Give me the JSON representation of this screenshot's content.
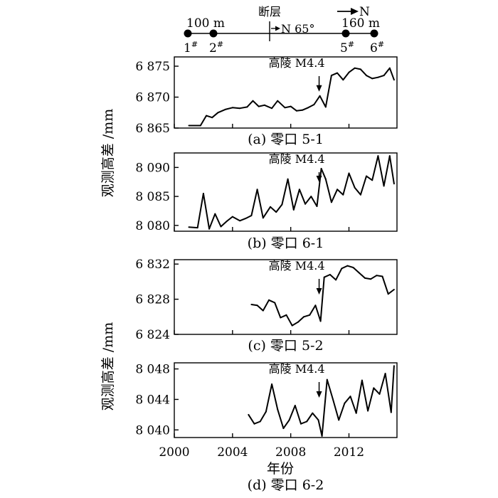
{
  "diagram": {
    "points": [
      {
        "label": "1",
        "sup": "#"
      },
      {
        "label": "2",
        "sup": "#"
      },
      {
        "label": "5",
        "sup": "#"
      },
      {
        "label": "6",
        "sup": "#"
      }
    ],
    "dist_left": "100 m",
    "dist_right": "160 m",
    "fault_label": "断层",
    "fault_strike": "N 65°",
    "north_label": "N"
  },
  "ylabel": "观测高差 /mm",
  "xlabel": "年份",
  "x_ticks": [
    "2000",
    "2004",
    "2008",
    "2012"
  ],
  "event_label": "高陵 M4.4",
  "event_year": 2009.95,
  "chart_data": [
    {
      "type": "line",
      "caption": "(a) 零口 5-1",
      "ylim": [
        6865,
        6876.5
      ],
      "yticks": [
        6865,
        6870,
        6875
      ],
      "ytick_labels": [
        "6 865",
        "6 870",
        "6 875"
      ],
      "x": [
        2001,
        2001.8,
        2002.2,
        2002.6,
        2003,
        2003.5,
        2004,
        2004.5,
        2005,
        2005.4,
        2005.8,
        2006.2,
        2006.7,
        2007.1,
        2007.6,
        2008,
        2008.4,
        2008.8,
        2009.2,
        2009.6,
        2010,
        2010.4,
        2010.8,
        2011.2,
        2011.6,
        2012,
        2012.4,
        2012.8,
        2013.2,
        2013.6,
        2014,
        2014.4,
        2014.8,
        2015.1
      ],
      "values": [
        6865.4,
        6865.4,
        6867,
        6866.7,
        6867.5,
        6868,
        6868.3,
        6868.2,
        6868.4,
        6869.4,
        6868.5,
        6868.7,
        6868.2,
        6869.4,
        6868.3,
        6868.5,
        6867.8,
        6867.9,
        6868.3,
        6868.8,
        6870.2,
        6868.4,
        6873.5,
        6873.9,
        6872.8,
        6874,
        6874.7,
        6874.5,
        6873.5,
        6873,
        6873.2,
        6873.5,
        6874.7,
        6872.8
      ]
    },
    {
      "type": "line",
      "caption": "(b) 零口 6-1",
      "ylim": [
        8079,
        8092.5
      ],
      "yticks": [
        8080,
        8085,
        8090
      ],
      "ytick_labels": [
        "8 080",
        "8 085",
        "8 090"
      ],
      "x": [
        2001,
        2001.6,
        2002,
        2002.4,
        2002.8,
        2003.2,
        2003.6,
        2004,
        2004.5,
        2004.9,
        2005.3,
        2005.7,
        2006.1,
        2006.6,
        2007,
        2007.4,
        2007.8,
        2008.2,
        2008.6,
        2009,
        2009.4,
        2009.8,
        2010.1,
        2010.4,
        2010.8,
        2011.2,
        2011.6,
        2012,
        2012.4,
        2012.8,
        2013.2,
        2013.6,
        2014,
        2014.4,
        2014.8,
        2015.1
      ],
      "values": [
        8079.7,
        8079.6,
        8085.5,
        8079.4,
        8082,
        8079.8,
        8080.7,
        8081.5,
        8080.8,
        8081.2,
        8081.7,
        8086.2,
        8081.3,
        8083.2,
        8082.3,
        8083.6,
        8088,
        8082.7,
        8086.2,
        8083.7,
        8085,
        8083.3,
        8089.8,
        8088,
        8084,
        8086.2,
        8085.3,
        8089,
        8086.5,
        8085.3,
        8088.5,
        8087.8,
        8092,
        8086.8,
        8092,
        8087.2
      ]
    },
    {
      "type": "line",
      "caption": "(c) 零口 5-2",
      "ylim": [
        6824,
        6832.5
      ],
      "yticks": [
        6824,
        6828,
        6832
      ],
      "ytick_labels": [
        "6 824",
        "6 828",
        "6 832"
      ],
      "x": [
        2005.3,
        2005.7,
        2006.1,
        2006.5,
        2006.9,
        2007.3,
        2007.7,
        2008.1,
        2008.5,
        2008.9,
        2009.3,
        2009.7,
        2010.05,
        2010.3,
        2010.7,
        2011.1,
        2011.5,
        2011.9,
        2012.3,
        2012.7,
        2013.1,
        2013.5,
        2013.9,
        2014.3,
        2014.7,
        2015.1
      ],
      "values": [
        6827.4,
        6827.3,
        6826.7,
        6827.9,
        6827.6,
        6825.9,
        6826.2,
        6825,
        6825.4,
        6826,
        6826.2,
        6827.3,
        6825.5,
        6830.5,
        6830.8,
        6830.2,
        6831.5,
        6831.8,
        6831.6,
        6831,
        6830.4,
        6830.3,
        6830.7,
        6830.6,
        6828.6,
        6829.1
      ]
    },
    {
      "type": "line",
      "caption": "(d) 零口 6-2",
      "ylim": [
        8039,
        8048.8
      ],
      "yticks": [
        8040,
        8044,
        8048
      ],
      "ytick_labels": [
        "8 040",
        "8 044",
        "8 048"
      ],
      "x": [
        2005.1,
        2005.5,
        2005.9,
        2006.3,
        2006.7,
        2007.1,
        2007.5,
        2007.9,
        2008.3,
        2008.7,
        2009.1,
        2009.5,
        2009.9,
        2010.15,
        2010.5,
        2010.9,
        2011.3,
        2011.7,
        2012.1,
        2012.5,
        2012.9,
        2013.3,
        2013.7,
        2014.1,
        2014.5,
        2014.9,
        2015.1
      ],
      "values": [
        8042,
        8040.8,
        8041.1,
        8042.4,
        8046,
        8042.7,
        8040.2,
        8041.3,
        8043.2,
        8040.8,
        8041.1,
        8042.2,
        8041.3,
        8039.2,
        8046.6,
        8044,
        8041.3,
        8043.5,
        8044.4,
        8042.2,
        8046.5,
        8042.5,
        8045.5,
        8044.7,
        8047.4,
        8042.3,
        8048.4
      ]
    }
  ]
}
